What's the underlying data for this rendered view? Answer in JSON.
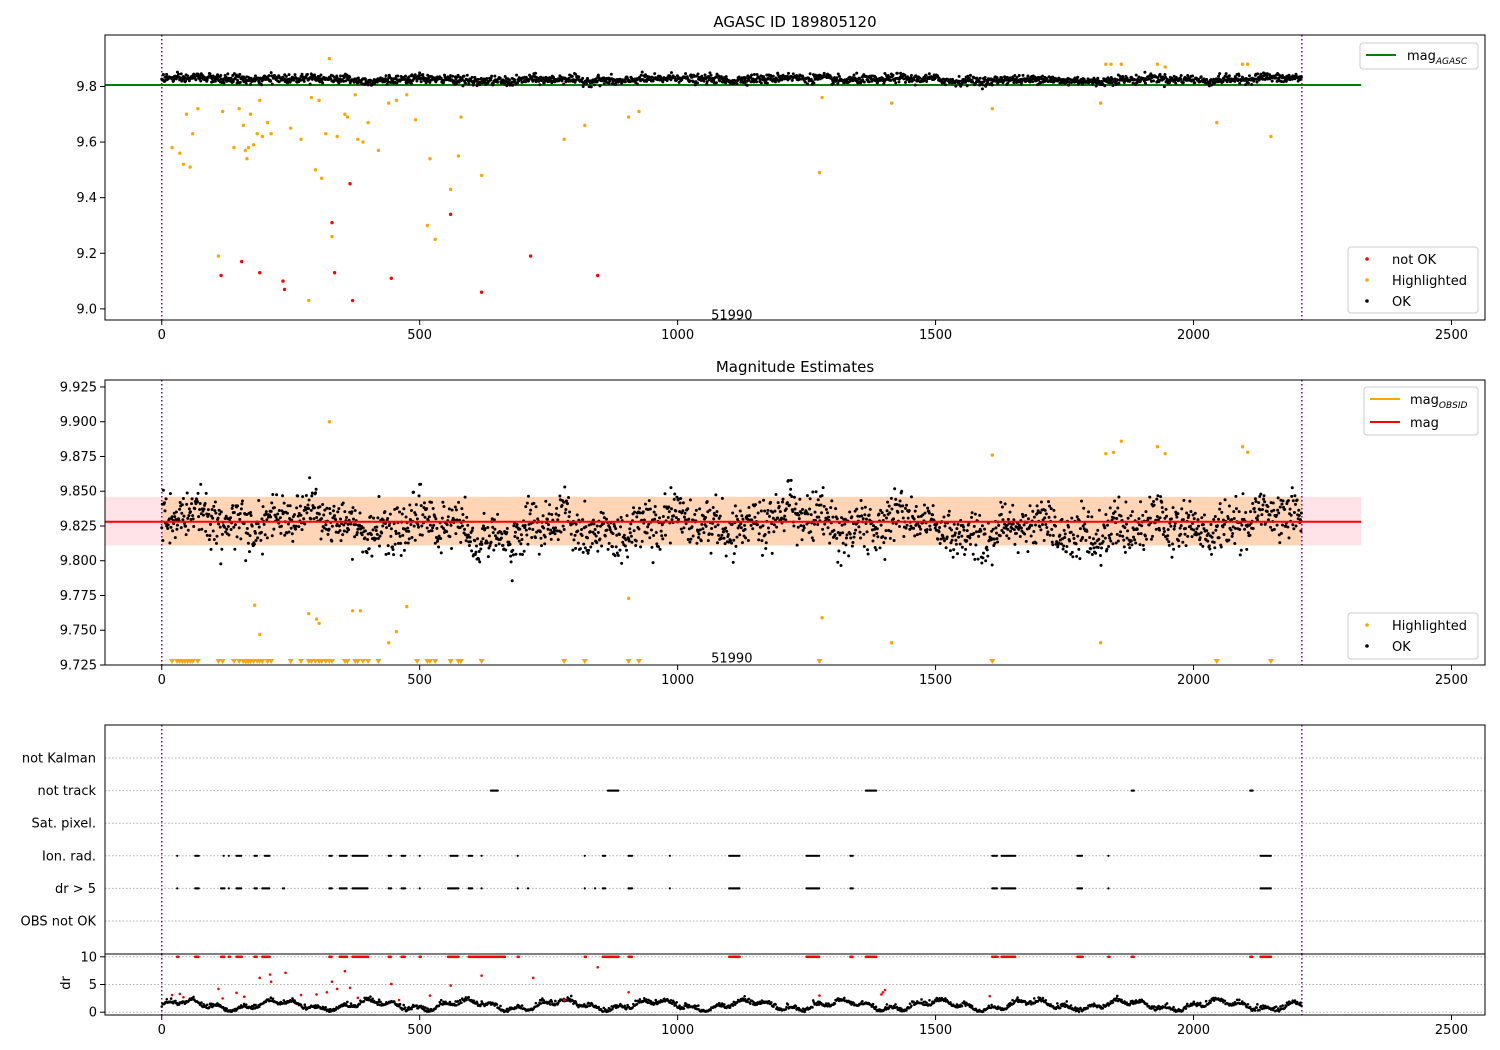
{
  "chart_data": [
    {
      "id": "mag-agasc",
      "type": "scatter",
      "title": "AGASC ID 189805120",
      "xlim": [
        -110,
        2565
      ],
      "ylim": [
        8.96,
        9.985
      ],
      "xticks": [
        0,
        500,
        1000,
        1500,
        2000,
        2500
      ],
      "yticks": [
        9.0,
        9.2,
        9.4,
        9.6,
        9.8
      ],
      "ytick_labels": [
        "9.0",
        "9.2",
        "9.4",
        "9.6",
        "9.8"
      ],
      "annotation": {
        "text": "51990",
        "x": 1105,
        "y": 8.98
      },
      "vlines": [
        0,
        2210
      ],
      "hline": {
        "y": 9.805,
        "x_range": [
          -110,
          2325
        ],
        "color": "#008000"
      },
      "legend_line": [
        {
          "label": "mag",
          "subscript": "AGASC",
          "color": "#008000"
        }
      ],
      "legend_points": [
        {
          "label": "not OK",
          "color": "#ff0000"
        },
        {
          "label": "Highlighted",
          "color": "#ffa500"
        },
        {
          "label": "OK",
          "color": "#000000"
        }
      ],
      "ok_band": {
        "x_range": [
          0,
          2210
        ],
        "center": 9.825,
        "half_width": 0.015
      },
      "highlighted": {
        "color": "#ffa500",
        "points": [
          [
            20,
            9.58
          ],
          [
            35,
            9.56
          ],
          [
            42,
            9.52
          ],
          [
            48,
            9.7
          ],
          [
            55,
            9.51
          ],
          [
            60,
            9.63
          ],
          [
            70,
            9.72
          ],
          [
            110,
            9.19
          ],
          [
            118,
            9.71
          ],
          [
            140,
            9.58
          ],
          [
            150,
            9.72
          ],
          [
            158,
            9.66
          ],
          [
            162,
            9.57
          ],
          [
            165,
            9.54
          ],
          [
            168,
            9.58
          ],
          [
            172,
            9.7
          ],
          [
            178,
            9.59
          ],
          [
            185,
            9.63
          ],
          [
            190,
            9.75
          ],
          [
            195,
            9.62
          ],
          [
            205,
            9.67
          ],
          [
            212,
            9.63
          ],
          [
            250,
            9.65
          ],
          [
            270,
            9.61
          ],
          [
            285,
            9.03
          ],
          [
            290,
            9.76
          ],
          [
            298,
            9.5
          ],
          [
            305,
            9.75
          ],
          [
            310,
            9.47
          ],
          [
            318,
            9.63
          ],
          [
            325,
            9.9
          ],
          [
            330,
            9.26
          ],
          [
            340,
            9.62
          ],
          [
            355,
            9.7
          ],
          [
            360,
            9.69
          ],
          [
            375,
            9.77
          ],
          [
            380,
            9.61
          ],
          [
            390,
            9.6
          ],
          [
            400,
            9.67
          ],
          [
            420,
            9.57
          ],
          [
            440,
            9.74
          ],
          [
            455,
            9.75
          ],
          [
            475,
            9.77
          ],
          [
            492,
            9.68
          ],
          [
            515,
            9.3
          ],
          [
            520,
            9.54
          ],
          [
            530,
            9.25
          ],
          [
            560,
            9.43
          ],
          [
            575,
            9.55
          ],
          [
            580,
            9.69
          ],
          [
            620,
            9.48
          ],
          [
            780,
            9.61
          ],
          [
            820,
            9.66
          ],
          [
            905,
            9.69
          ],
          [
            925,
            9.71
          ],
          [
            1275,
            9.49
          ],
          [
            1280,
            9.76
          ],
          [
            1415,
            9.74
          ],
          [
            1610,
            9.72
          ],
          [
            1820,
            9.74
          ],
          [
            1830,
            9.88
          ],
          [
            1840,
            9.88
          ],
          [
            1860,
            9.88
          ],
          [
            1930,
            9.88
          ],
          [
            1945,
            9.87
          ],
          [
            2045,
            9.67
          ],
          [
            2095,
            9.88
          ],
          [
            2105,
            9.88
          ],
          [
            2150,
            9.62
          ]
        ]
      },
      "not_ok": {
        "color": "#ff0000",
        "points": [
          [
            115,
            9.12
          ],
          [
            155,
            9.17
          ],
          [
            190,
            9.13
          ],
          [
            235,
            9.1
          ],
          [
            238,
            9.07
          ],
          [
            330,
            9.31
          ],
          [
            335,
            9.13
          ],
          [
            365,
            9.45
          ],
          [
            370,
            9.03
          ],
          [
            445,
            9.11
          ],
          [
            560,
            9.34
          ],
          [
            620,
            9.06
          ],
          [
            715,
            9.19
          ],
          [
            845,
            9.12
          ]
        ]
      }
    },
    {
      "id": "mag-estimates",
      "type": "scatter",
      "title": "Magnitude Estimates",
      "xlim": [
        -110,
        2565
      ],
      "ylim": [
        9.725,
        9.93
      ],
      "xticks": [
        0,
        500,
        1000,
        1500,
        2000,
        2500
      ],
      "yticks": [
        9.725,
        9.75,
        9.775,
        9.8,
        9.825,
        9.85,
        9.875,
        9.9,
        9.925
      ],
      "ytick_labels": [
        "9.725",
        "9.750",
        "9.775",
        "9.800",
        "9.825",
        "9.850",
        "9.875",
        "9.900",
        "9.925"
      ],
      "annotation": {
        "text": "51990",
        "x": 1105,
        "y": 9.7305
      },
      "vlines": [
        0,
        2210
      ],
      "mag_line": {
        "y": 9.828,
        "x_range": [
          -110,
          2325
        ],
        "color": "#ff0000"
      },
      "mag_band": {
        "y_range": [
          9.811,
          9.846
        ],
        "x_range": [
          -110,
          2325
        ],
        "color": "#ffc0cb"
      },
      "obsid_band": {
        "y_range": [
          9.811,
          9.846
        ],
        "x_range": [
          0,
          2210
        ],
        "color": "#ffa500"
      },
      "legend_line": [
        {
          "label": "mag",
          "subscript": "OBSID",
          "color": "#ffa500"
        },
        {
          "label": "mag",
          "subscript": "",
          "color": "#ff0000"
        }
      ],
      "legend_points": [
        {
          "label": "Highlighted",
          "color": "#ffa500"
        },
        {
          "label": "OK",
          "color": "#000000"
        }
      ],
      "ok_center": 9.825,
      "ok_spread": 0.016,
      "highlighted": {
        "color": "#ffa500",
        "points": [
          [
            180,
            9.768
          ],
          [
            190,
            9.747
          ],
          [
            285,
            9.762
          ],
          [
            300,
            9.758
          ],
          [
            305,
            9.755
          ],
          [
            325,
            9.9
          ],
          [
            370,
            9.764
          ],
          [
            385,
            9.764
          ],
          [
            440,
            9.741
          ],
          [
            455,
            9.749
          ],
          [
            475,
            9.767
          ],
          [
            905,
            9.773
          ],
          [
            1280,
            9.759
          ],
          [
            1415,
            9.741
          ],
          [
            1610,
            9.876
          ],
          [
            1820,
            9.741
          ],
          [
            1830,
            9.877
          ],
          [
            1845,
            9.878
          ],
          [
            1860,
            9.886
          ],
          [
            1930,
            9.882
          ],
          [
            1945,
            9.877
          ],
          [
            2095,
            9.882
          ],
          [
            2105,
            9.878
          ]
        ]
      },
      "clipped": {
        "color": "#ffa500",
        "x": [
          20,
          30,
          35,
          40,
          45,
          50,
          55,
          60,
          70,
          110,
          118,
          140,
          150,
          158,
          162,
          165,
          168,
          172,
          178,
          185,
          190,
          195,
          205,
          212,
          250,
          270,
          285,
          290,
          298,
          305,
          310,
          318,
          325,
          330,
          355,
          360,
          375,
          380,
          390,
          400,
          420,
          495,
          515,
          520,
          530,
          560,
          575,
          580,
          620,
          780,
          820,
          905,
          925,
          1275,
          1610,
          2045,
          2150
        ]
      }
    },
    {
      "id": "flags",
      "type": "scatter",
      "xlim": [
        -110,
        2565
      ],
      "vlines": [
        0,
        2210
      ],
      "categories": [
        "not Kalman",
        "not track",
        "Sat. pixel.",
        "Ion. rad.",
        "dr > 5",
        "OBS not OK"
      ],
      "flag_points": {
        "not track": [
          [
            638,
            652
          ],
          [
            865,
            885
          ],
          [
            1365,
            1385
          ],
          [
            1880,
            1885
          ],
          [
            2110,
            2115
          ]
        ],
        "Ion. rad.": [
          [
            30,
            32
          ],
          [
            65,
            72
          ],
          [
            120,
            122
          ],
          [
            130,
            132
          ],
          [
            145,
            155
          ],
          [
            180,
            185
          ],
          [
            200,
            210
          ],
          [
            325,
            330
          ],
          [
            345,
            360
          ],
          [
            370,
            400
          ],
          [
            440,
            445
          ],
          [
            465,
            472
          ],
          [
            500,
            502
          ],
          [
            560,
            575
          ],
          [
            595,
            602
          ],
          [
            620,
            622
          ],
          [
            690,
            692
          ],
          [
            820,
            822
          ],
          [
            855,
            860
          ],
          [
            905,
            912
          ],
          [
            985,
            987
          ],
          [
            1100,
            1120
          ],
          [
            1250,
            1275
          ],
          [
            1335,
            1340
          ],
          [
            1610,
            1620
          ],
          [
            1628,
            1655
          ],
          [
            1775,
            1785
          ],
          [
            1835,
            1837
          ],
          [
            2130,
            2150
          ]
        ],
        "dr > 5": [
          [
            30,
            32
          ],
          [
            65,
            72
          ],
          [
            115,
            122
          ],
          [
            130,
            132
          ],
          [
            145,
            155
          ],
          [
            180,
            185
          ],
          [
            195,
            210
          ],
          [
            235,
            238
          ],
          [
            325,
            330
          ],
          [
            345,
            360
          ],
          [
            370,
            400
          ],
          [
            440,
            445
          ],
          [
            465,
            472
          ],
          [
            500,
            502
          ],
          [
            555,
            575
          ],
          [
            595,
            602
          ],
          [
            620,
            622
          ],
          [
            690,
            692
          ],
          [
            710,
            712
          ],
          [
            820,
            822
          ],
          [
            840,
            842
          ],
          [
            855,
            860
          ],
          [
            905,
            912
          ],
          [
            985,
            987
          ],
          [
            1100,
            1120
          ],
          [
            1250,
            1275
          ],
          [
            1335,
            1340
          ],
          [
            1610,
            1620
          ],
          [
            1628,
            1655
          ],
          [
            1775,
            1785
          ],
          [
            1835,
            1837
          ],
          [
            2130,
            2150
          ]
        ]
      }
    },
    {
      "id": "dr",
      "type": "scatter",
      "ylabel": "dr",
      "xlim": [
        -110,
        2565
      ],
      "ylim": [
        -0.5,
        10.5
      ],
      "xticks": [
        0,
        500,
        1000,
        1500,
        2000,
        2500
      ],
      "yticks": [
        0,
        5,
        10
      ],
      "ytick_labels": [
        "0",
        "5",
        "10"
      ],
      "vlines": [
        0,
        2210
      ],
      "red_clusters": [
        [
          30,
          32
        ],
        [
          65,
          72
        ],
        [
          115,
          122
        ],
        [
          130,
          132
        ],
        [
          145,
          155
        ],
        [
          180,
          185
        ],
        [
          195,
          210
        ],
        [
          325,
          330
        ],
        [
          345,
          360
        ],
        [
          370,
          400
        ],
        [
          440,
          445
        ],
        [
          465,
          472
        ],
        [
          500,
          502
        ],
        [
          555,
          575
        ],
        [
          595,
          665
        ],
        [
          690,
          692
        ],
        [
          820,
          822
        ],
        [
          855,
          885
        ],
        [
          905,
          912
        ],
        [
          1100,
          1120
        ],
        [
          1250,
          1275
        ],
        [
          1335,
          1340
        ],
        [
          1365,
          1385
        ],
        [
          1610,
          1620
        ],
        [
          1628,
          1655
        ],
        [
          1775,
          1785
        ],
        [
          1835,
          1837
        ],
        [
          1880,
          1885
        ],
        [
          2110,
          2115
        ],
        [
          2130,
          2150
        ]
      ],
      "red_scatter": [
        [
          20,
          3.1
        ],
        [
          35,
          3.3
        ],
        [
          42,
          2.7
        ],
        [
          110,
          4.2
        ],
        [
          118,
          2.5
        ],
        [
          145,
          3.5
        ],
        [
          160,
          2.8
        ],
        [
          190,
          6.2
        ],
        [
          210,
          6.8
        ],
        [
          212,
          5.5
        ],
        [
          240,
          7.1
        ],
        [
          270,
          3.1
        ],
        [
          300,
          3.2
        ],
        [
          320,
          3.6
        ],
        [
          330,
          5.5
        ],
        [
          340,
          4.2
        ],
        [
          355,
          7.4
        ],
        [
          365,
          4.4
        ],
        [
          380,
          2.6
        ],
        [
          445,
          5.1
        ],
        [
          460,
          2.2
        ],
        [
          520,
          3.0
        ],
        [
          560,
          4.8
        ],
        [
          620,
          6.6
        ],
        [
          720,
          6.2
        ],
        [
          780,
          2.2
        ],
        [
          845,
          8.1
        ],
        [
          905,
          3.6
        ],
        [
          1275,
          3.0
        ],
        [
          1395,
          3.2
        ],
        [
          1398,
          3.6
        ],
        [
          1402,
          4.0
        ],
        [
          1605,
          2.9
        ]
      ]
    }
  ]
}
